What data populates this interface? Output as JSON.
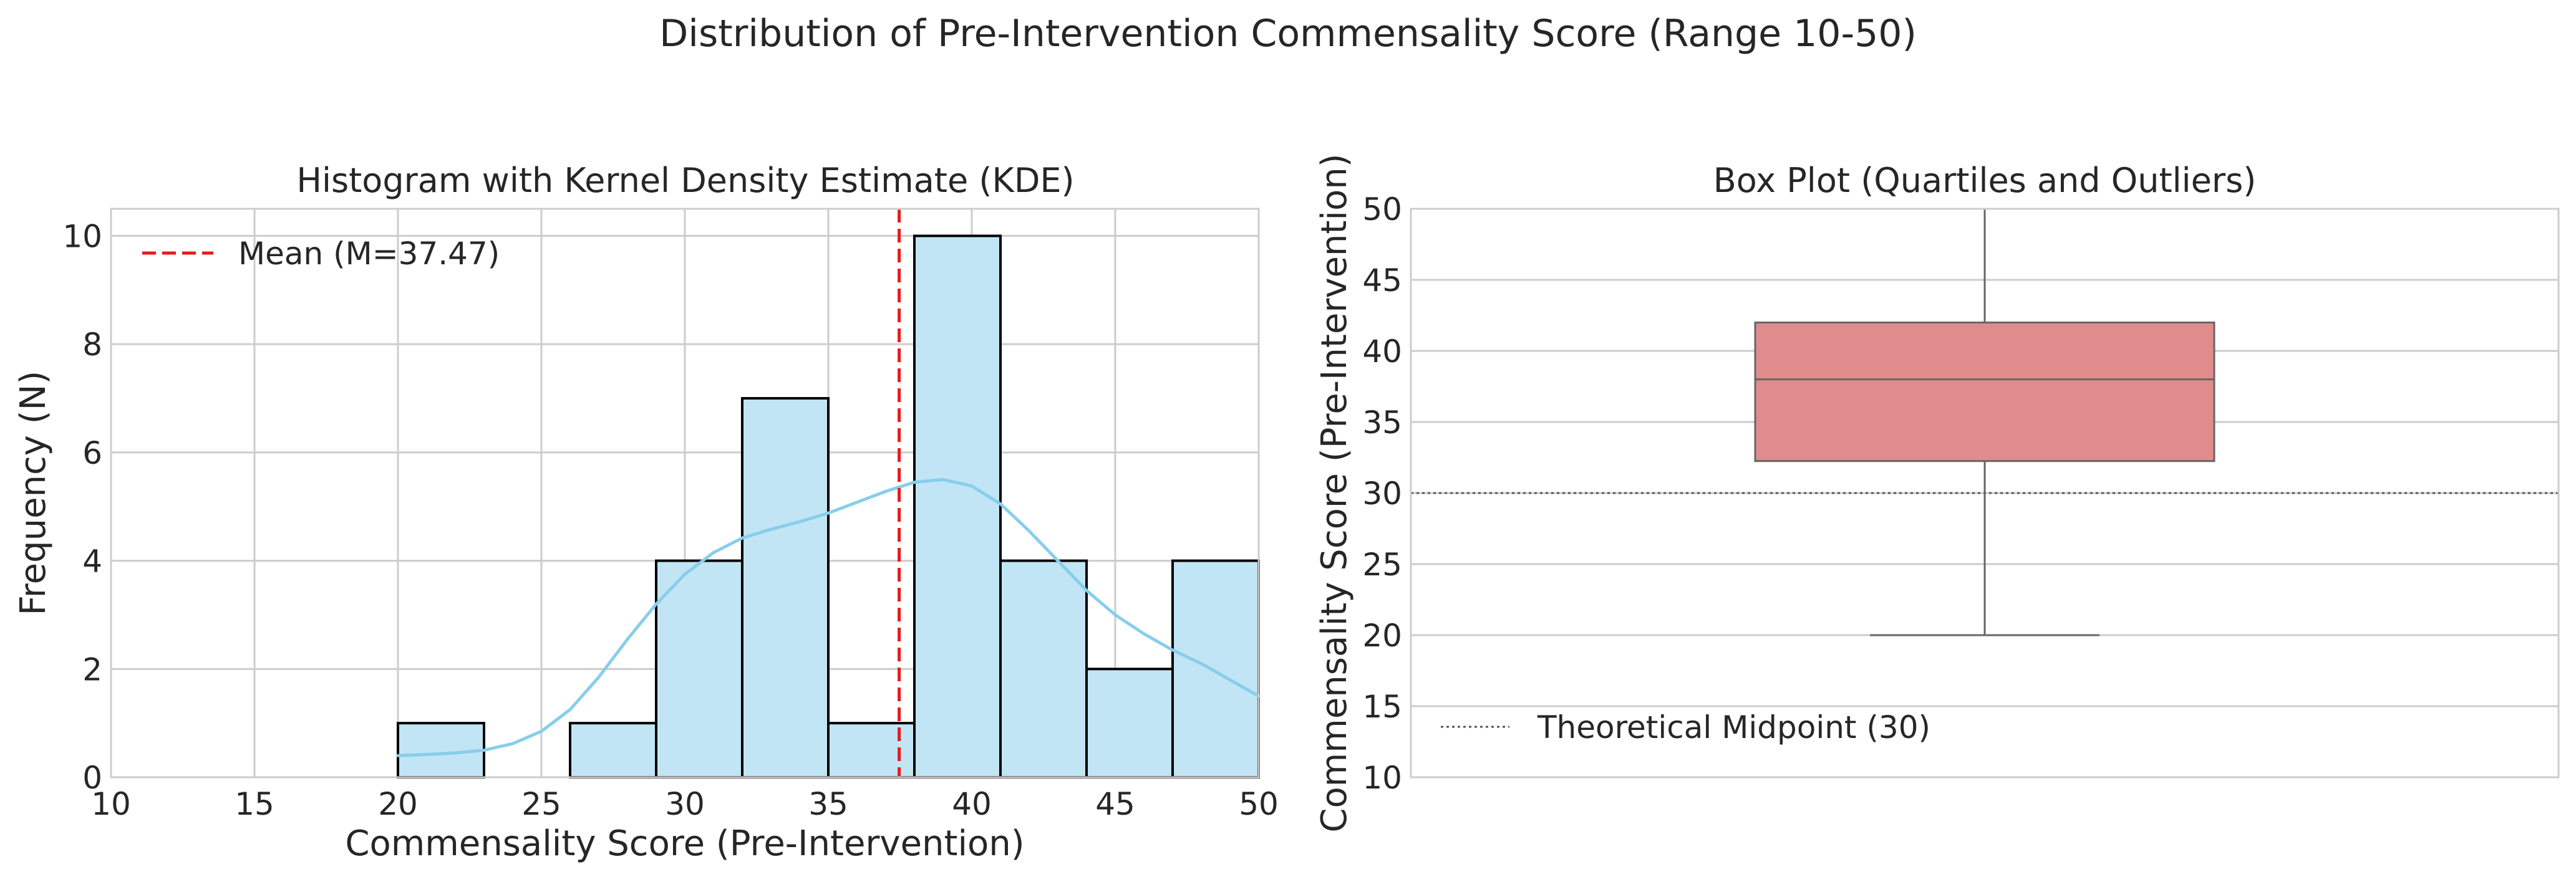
{
  "figure": {
    "suptitle": "Distribution of Pre-Intervention Commensality Score (Range 10-50)"
  },
  "chart_data": [
    {
      "type": "bar",
      "subtype": "histogram-with-kde",
      "title": "Histogram with Kernel Density Estimate (KDE)",
      "xlabel": "Commensality Score (Pre-Intervention)",
      "ylabel": "Frequency (N)",
      "xlim": [
        10,
        50
      ],
      "ylim": [
        0,
        10.5
      ],
      "xticks": [
        10,
        15,
        20,
        25,
        30,
        35,
        40,
        45,
        50
      ],
      "yticks": [
        0,
        2,
        4,
        6,
        8,
        10
      ],
      "grid": true,
      "bins": [
        {
          "start": 20,
          "end": 23,
          "count": 1
        },
        {
          "start": 23,
          "end": 26,
          "count": 0
        },
        {
          "start": 26,
          "end": 29,
          "count": 1
        },
        {
          "start": 29,
          "end": 32,
          "count": 4
        },
        {
          "start": 32,
          "end": 35,
          "count": 7
        },
        {
          "start": 35,
          "end": 38,
          "count": 1
        },
        {
          "start": 38,
          "end": 41,
          "count": 10
        },
        {
          "start": 41,
          "end": 44,
          "count": 4
        },
        {
          "start": 44,
          "end": 47,
          "count": 2
        },
        {
          "start": 47,
          "end": 50,
          "count": 4
        }
      ],
      "kde": {
        "x": [
          20,
          21,
          22,
          23,
          24,
          25,
          26,
          27,
          28,
          29,
          30,
          31,
          32,
          33,
          34,
          35,
          36,
          37,
          38,
          39,
          40,
          41,
          42,
          43,
          44,
          45,
          46,
          47,
          48,
          49,
          50
        ],
        "y": [
          0.4,
          0.42,
          0.45,
          0.5,
          0.62,
          0.85,
          1.25,
          1.85,
          2.55,
          3.2,
          3.75,
          4.15,
          4.42,
          4.58,
          4.72,
          4.88,
          5.08,
          5.28,
          5.45,
          5.5,
          5.38,
          5.05,
          4.55,
          4.0,
          3.45,
          3.0,
          2.65,
          2.35,
          2.1,
          1.8,
          1.5
        ]
      },
      "mean_line": {
        "value": 37.47,
        "label": "Mean (M=37.47)",
        "style": "dashed"
      },
      "legend_position": "top-left",
      "colors": {
        "bar_fill": "#c1e5f4",
        "bar_edge": "#000000",
        "kde": "#87ceeb",
        "mean": "#e8191c",
        "grid": "#cccccc"
      }
    },
    {
      "type": "box",
      "title": "Box Plot (Quartiles and Outliers)",
      "ylabel": "Commensality Score (Pre-Intervention)",
      "ylim": [
        10,
        50
      ],
      "yticks": [
        10,
        15,
        20,
        25,
        30,
        35,
        40,
        45,
        50
      ],
      "grid": true,
      "box": {
        "whisker_low": 20,
        "q1": 32.25,
        "median": 38,
        "q3": 42,
        "whisker_high": 50
      },
      "reference_line": {
        "value": 30,
        "label": "Theoretical Midpoint (30)",
        "style": "dotted"
      },
      "legend_position": "lower-left",
      "colors": {
        "box_fill": "#e08c8c",
        "box_edge": "#666666",
        "reference": "#555555",
        "grid": "#cccccc"
      }
    }
  ]
}
